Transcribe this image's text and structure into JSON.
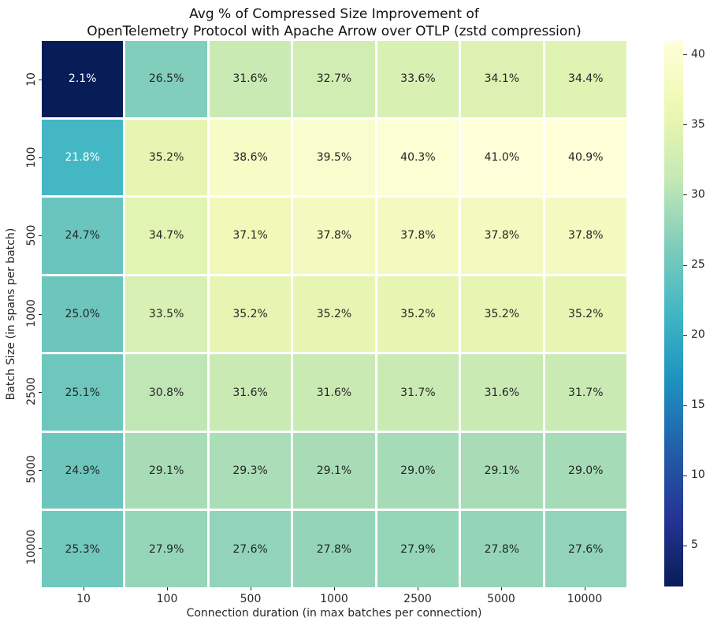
{
  "chart_data": {
    "type": "heatmap",
    "title_lines": [
      "Avg % of Compressed Size Improvement of",
      "OpenTelemetry Protocol with Apache Arrow over OTLP (zstd compression)"
    ],
    "xlabel": "Connection duration (in max batches per connection)",
    "ylabel": "Batch Size (in spans per batch)",
    "x_categories": [
      "10",
      "100",
      "500",
      "1000",
      "2500",
      "5000",
      "10000"
    ],
    "y_categories": [
      "10",
      "100",
      "500",
      "1000",
      "2500",
      "5000",
      "10000"
    ],
    "values": [
      [
        2.1,
        26.5,
        31.6,
        32.7,
        33.6,
        34.1,
        34.4
      ],
      [
        21.8,
        35.2,
        38.6,
        39.5,
        40.3,
        41.0,
        40.9
      ],
      [
        24.7,
        34.7,
        37.1,
        37.8,
        37.8,
        37.8,
        37.8
      ],
      [
        25.0,
        33.5,
        35.2,
        35.2,
        35.2,
        35.2,
        35.2
      ],
      [
        25.1,
        30.8,
        31.6,
        31.6,
        31.7,
        31.6,
        31.7
      ],
      [
        24.9,
        29.1,
        29.3,
        29.1,
        29.0,
        29.1,
        29.0
      ],
      [
        25.3,
        27.9,
        27.6,
        27.8,
        27.9,
        27.8,
        27.6
      ]
    ],
    "value_suffix": "%",
    "value_decimals": 1,
    "vmin": 2.1,
    "vmax": 41.0,
    "colorbar_ticks": [
      5,
      10,
      15,
      20,
      25,
      30,
      35,
      40
    ],
    "colormap": {
      "name": "YlGnBu_r",
      "stops_low_to_high": [
        "#081d58",
        "#253494",
        "#225ea8",
        "#1d91c0",
        "#41b6c4",
        "#7fcdbb",
        "#c7e9b4",
        "#edf8b1",
        "#ffffd9"
      ]
    },
    "grid_line_color": "#ffffff",
    "annot_text_dark": "#262626",
    "annot_text_light": "#ffffff",
    "background": "#ffffff",
    "legend_position": "right",
    "grid": "off"
  }
}
